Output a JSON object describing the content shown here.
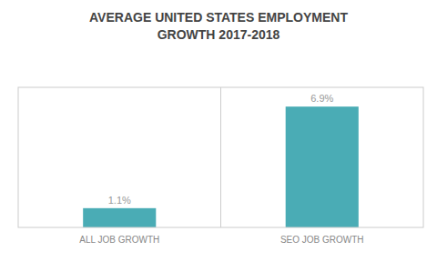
{
  "chart_data": {
    "type": "bar",
    "title": "AVERAGE UNITED STATES EMPLOYMENT\nGROWTH 2017-2018",
    "categories": [
      "ALL JOB GROWTH",
      "SEO JOB GROWTH"
    ],
    "values": [
      1.1,
      6.9
    ],
    "value_labels": [
      "1.1%",
      "6.9%"
    ],
    "color": "#4aacb5",
    "ylim": [
      0,
      8
    ],
    "grid": false,
    "data_labels": true,
    "tick_labels": "x"
  }
}
